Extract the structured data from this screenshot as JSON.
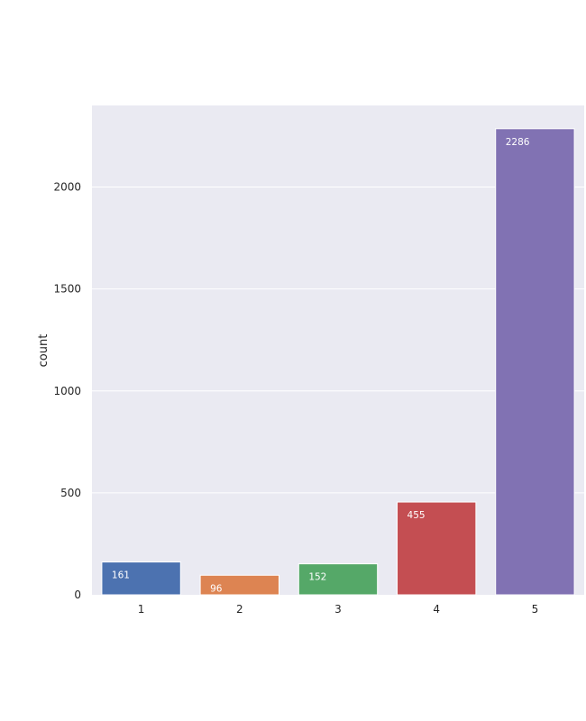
{
  "chart_data": {
    "type": "bar",
    "title": "",
    "xlabel": "",
    "ylabel": "count",
    "categories": [
      "1",
      "2",
      "3",
      "4",
      "5"
    ],
    "values": [
      161,
      96,
      152,
      455,
      2286
    ],
    "data_labels": [
      "161",
      "96",
      "152",
      "455",
      "2286"
    ],
    "colors": [
      "#4c72b0",
      "#dd8452",
      "#55a868",
      "#c44e52",
      "#8172b3"
    ],
    "yticks": [
      0,
      500,
      1000,
      1500,
      2000
    ],
    "ytick_labels": [
      "0",
      "500",
      "1000",
      "1500",
      "2000"
    ],
    "ylim": [
      0,
      2400
    ],
    "grid": true,
    "background": "#eaeaf2",
    "gridline_color": "#ffffff"
  }
}
